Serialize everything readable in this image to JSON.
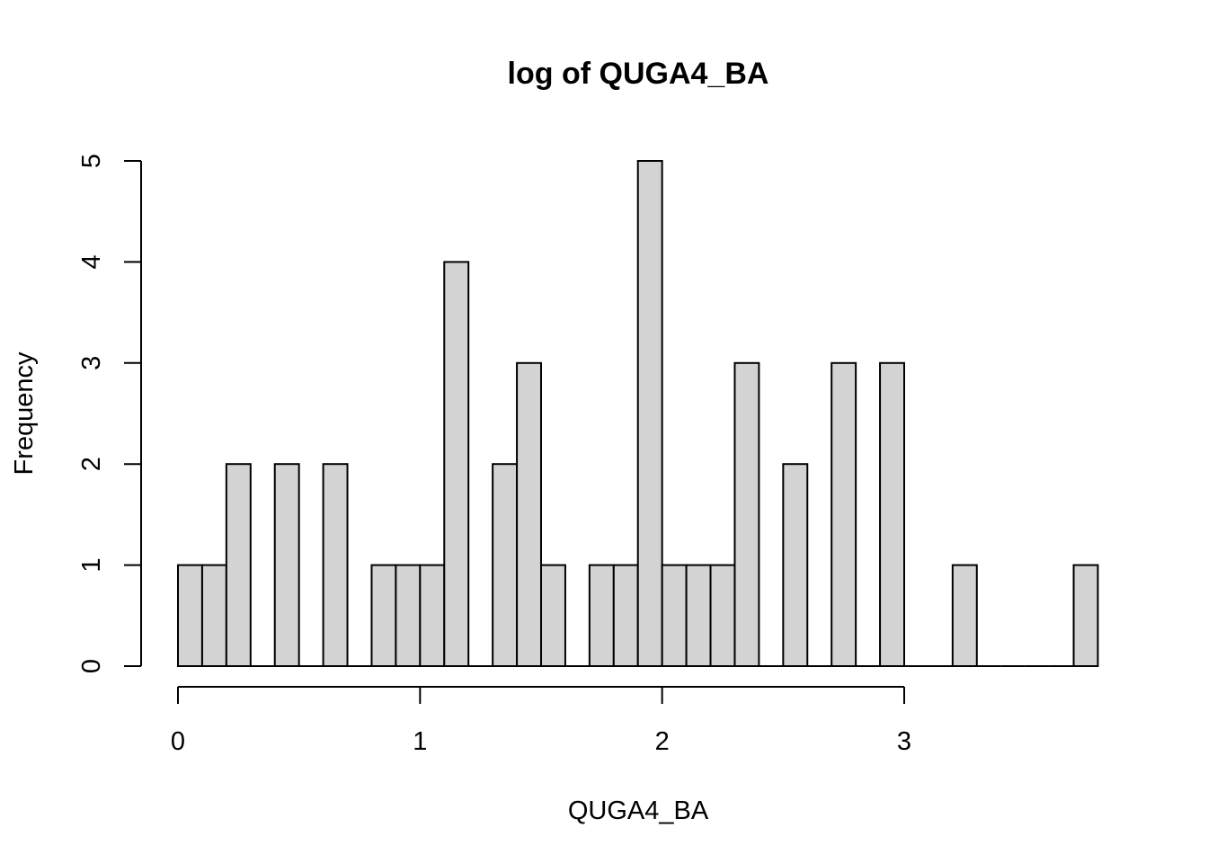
{
  "chart_data": {
    "type": "bar",
    "title": "log of QUGA4_BA",
    "xlabel": "QUGA4_BA",
    "ylabel": "Frequency",
    "xlim": [
      0,
      3.8
    ],
    "ylim": [
      0,
      5
    ],
    "x_ticks": [
      0,
      1,
      2,
      3
    ],
    "y_ticks": [
      0,
      1,
      2,
      3,
      4,
      5
    ],
    "bin_width": 0.1,
    "bin_starts": [
      0.0,
      0.1,
      0.2,
      0.3,
      0.4,
      0.5,
      0.6,
      0.7,
      0.8,
      0.9,
      1.0,
      1.1,
      1.2,
      1.3,
      1.4,
      1.5,
      1.6,
      1.7,
      1.8,
      1.9,
      2.0,
      2.1,
      2.2,
      2.3,
      2.4,
      2.5,
      2.6,
      2.7,
      2.8,
      2.9,
      3.0,
      3.1,
      3.2,
      3.3,
      3.4,
      3.5,
      3.6,
      3.7
    ],
    "values": [
      1,
      1,
      2,
      0,
      2,
      0,
      2,
      0,
      1,
      1,
      1,
      4,
      0,
      2,
      3,
      1,
      0,
      1,
      1,
      5,
      1,
      1,
      1,
      3,
      0,
      2,
      0,
      3,
      0,
      3,
      0,
      0,
      1,
      0,
      0,
      0,
      0,
      1
    ],
    "bar_color": "#d3d3d3",
    "grid": false,
    "legend": "none"
  }
}
